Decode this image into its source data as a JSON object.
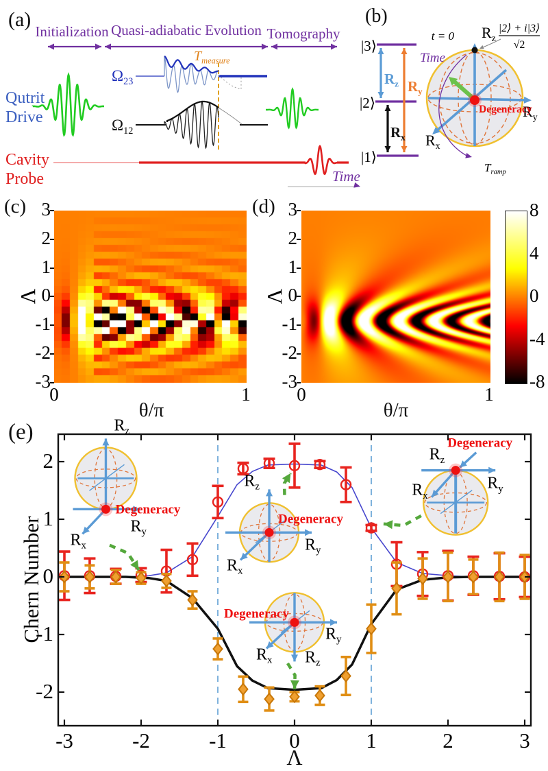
{
  "panel_a": {
    "label": "(a)",
    "phases": [
      "Initialization",
      "Quasi-adiabatic Evolution",
      "Tomography"
    ],
    "t_measure": {
      "base": "T",
      "sub": "measure"
    },
    "omega23": {
      "base": "Ω",
      "sub": "23"
    },
    "omega12": {
      "base": "Ω",
      "sub": "12"
    },
    "qutrit": "Qutrit",
    "drive": "Drive",
    "cavity": "Cavity",
    "probe": "Probe",
    "time_label": "Time",
    "colors": {
      "phase": "#7030A0",
      "qutrit_label": "#3B5FC0",
      "cavity_label": "#E02020",
      "green_pulse": "#22CC22",
      "omega23": "#2233BB",
      "omega12": "#111111",
      "t_measure": "#E0821A",
      "probe_line": "#E02020"
    }
  },
  "panel_b": {
    "label": "(b)",
    "levels": [
      "|3⟩",
      "|2⟩",
      "|1⟩"
    ],
    "rz": {
      "base": "R",
      "sub": "z",
      "color": "#5B9BD5"
    },
    "ry": {
      "base": "R",
      "sub": "y",
      "color": "#ED7D31"
    },
    "rx": {
      "base": "R",
      "sub": "x",
      "color": "#111111"
    },
    "t0": "t = 0",
    "state_numerator": "|2⟩ + i|3⟩",
    "state_denominator": "√2",
    "time_label": "Time",
    "t_ramp": {
      "base": "T",
      "sub": "ramp"
    },
    "degeneracy": "Degeneracy",
    "sphere_axis_rz": {
      "base": "R",
      "sub": "z"
    },
    "sphere_axis_ry": {
      "base": "R",
      "sub": "y"
    },
    "sphere_axis_rx": {
      "base": "R",
      "sub": "x"
    }
  },
  "panel_c": {
    "label": "(c)",
    "ylabel": "Λ",
    "yticks": [
      "3",
      "2",
      "1",
      "0",
      "-1",
      "-2",
      "-3"
    ],
    "xticks": [
      "0",
      "1"
    ],
    "xlabel": "θ/π"
  },
  "panel_d": {
    "label": "(d)",
    "ylabel": "Λ",
    "yticks": [
      "3",
      "2",
      "1",
      "0",
      "-1",
      "-2",
      "-3"
    ],
    "xticks": [
      "0",
      "1"
    ],
    "xlabel": "θ/π"
  },
  "colorbar": {
    "ticks": [
      "8",
      "4",
      "0",
      "-4",
      "-8"
    ]
  },
  "panel_e": {
    "label": "(e)",
    "ylabel": "Chern Number",
    "xlabel": "Λ",
    "xticks": [
      "-3",
      "-2",
      "-1",
      "0",
      "1",
      "2",
      "3"
    ],
    "yticks": [
      "2",
      "1",
      "0",
      "-1",
      "-2"
    ],
    "degeneracy": "Degeneracy"
  },
  "chart_data": [
    {
      "id": "c",
      "type": "heatmap",
      "xlabel": "θ/π",
      "ylabel": "Λ",
      "xlim": [
        0,
        1
      ],
      "ylim": [
        -3,
        3
      ],
      "clim": [
        -8,
        8
      ],
      "colormap": "hot",
      "style": "coarse checkerboard grid",
      "grid_cols": 24,
      "grid_rows": 25,
      "pattern": {
        "description": "oscillatory deflection band centered near Λ = -0.85, alternating-sign cells along θ with row-offset checkerboard, fading above Λ = 0 and below Λ = -2",
        "lambda0": -0.85,
        "k": 34,
        "theta0": 0.1,
        "bend": 0.65,
        "sigma_main": 0.5,
        "halo_amp": 0.22,
        "sigma_halo": 1.5,
        "ramp_theta": 0.13,
        "theta_decay": 0.3,
        "vmax": 8,
        "checker": true
      }
    },
    {
      "id": "d",
      "type": "heatmap",
      "xlabel": "θ/π",
      "ylabel": "Λ",
      "xlim": [
        0,
        1
      ],
      "ylim": [
        -3,
        3
      ],
      "clim": [
        -8,
        8
      ],
      "colormap": "hot",
      "style": "smooth chevron fringes opening toward larger θ, vertex near (θ=0.15, Λ=-0.85)",
      "grid_cols": 276,
      "grid_rows": 251,
      "pattern": {
        "description": "same oscillatory response as panel c but continuous",
        "lambda0": -0.85,
        "k": 34,
        "theta0": 0.1,
        "bend": 0.65,
        "sigma_main": 0.5,
        "halo_amp": 0.22,
        "sigma_halo": 1.5,
        "ramp_theta": 0.13,
        "theta_decay": 0.3,
        "vmax": 8,
        "checker": false
      }
    },
    {
      "id": "e",
      "type": "scatter",
      "xlabel": "Λ",
      "ylabel": "Chern Number",
      "xlim": [
        -3.08,
        3.08
      ],
      "ylim": [
        -2.58,
        2.47
      ],
      "xticks": [
        -3,
        -2,
        -1,
        0,
        1,
        2,
        3
      ],
      "yticks": [
        2,
        1,
        0,
        -1,
        -2
      ],
      "x": [
        -3,
        -2.67,
        -2.33,
        -2,
        -1.67,
        -1.33,
        -1,
        -0.67,
        -0.33,
        0,
        0.33,
        0.67,
        1,
        1.33,
        1.67,
        2,
        2.33,
        2.67,
        3
      ],
      "series": [
        {
          "name": "measured Chern number (upper band)",
          "marker": "circle",
          "color": "#E8241F",
          "y": [
            0.02,
            0.02,
            0.01,
            0.03,
            0.1,
            0.3,
            1.3,
            1.88,
            1.97,
            1.93,
            1.95,
            1.6,
            0.85,
            0.22,
            0.05,
            0.02,
            0.02,
            0.01,
            0.0
          ],
          "yerr": [
            0.42,
            0.3,
            0.13,
            0.12,
            0.37,
            0.28,
            0.28,
            0.1,
            0.08,
            0.38,
            0.06,
            0.3,
            0.05,
            0.38,
            0.38,
            0.43,
            0.33,
            0.4,
            0.35
          ]
        },
        {
          "name": "measured Chern number (lower band)",
          "marker": "diamond",
          "color": "#E08E14",
          "y": [
            0.0,
            0.0,
            0.0,
            -0.02,
            -0.07,
            -0.4,
            -1.25,
            -1.95,
            -2.12,
            -2.08,
            -2.06,
            -1.72,
            -0.9,
            -0.2,
            -0.03,
            0.0,
            0.0,
            0.0,
            0.0
          ],
          "yerr": [
            0.25,
            0.2,
            0.12,
            0.1,
            0.12,
            0.15,
            0.18,
            0.22,
            0.2,
            0.08,
            0.16,
            0.33,
            0.42,
            0.45,
            0.35,
            0.42,
            0.3,
            0.42,
            0.38
          ]
        }
      ],
      "lines": [
        {
          "name": "theory upper",
          "color": "#4747CE",
          "width": 1.6,
          "points": [
            [
              -3,
              0
            ],
            [
              -2.2,
              0
            ],
            [
              -1.9,
              0.02
            ],
            [
              -1.67,
              0.07
            ],
            [
              -1.33,
              0.35
            ],
            [
              -1,
              1.05
            ],
            [
              -0.75,
              1.6
            ],
            [
              -0.55,
              1.83
            ],
            [
              -0.35,
              1.94
            ],
            [
              0,
              1.96
            ],
            [
              0.35,
              1.94
            ],
            [
              0.55,
              1.82
            ],
            [
              0.75,
              1.55
            ],
            [
              1,
              0.85
            ],
            [
              1.33,
              0.25
            ],
            [
              1.67,
              0.06
            ],
            [
              2,
              0.02
            ],
            [
              2.3,
              0
            ],
            [
              3,
              0
            ]
          ]
        },
        {
          "name": "theory lower",
          "color": "#111111",
          "width": 3.5,
          "points": [
            [
              -3,
              0
            ],
            [
              -2.2,
              0
            ],
            [
              -1.9,
              -0.02
            ],
            [
              -1.67,
              -0.07
            ],
            [
              -1.33,
              -0.37
            ],
            [
              -1,
              -0.9
            ],
            [
              -0.75,
              -1.55
            ],
            [
              -0.55,
              -1.8
            ],
            [
              -0.35,
              -1.93
            ],
            [
              0,
              -1.96
            ],
            [
              0.35,
              -1.93
            ],
            [
              0.55,
              -1.79
            ],
            [
              0.75,
              -1.52
            ],
            [
              1,
              -0.82
            ],
            [
              1.33,
              -0.22
            ],
            [
              1.67,
              -0.05
            ],
            [
              2,
              -0.01
            ],
            [
              2.3,
              0
            ],
            [
              3,
              0
            ]
          ]
        }
      ],
      "vlines": {
        "x": [
          -1,
          1
        ],
        "color": "#7EB2DC",
        "style": "dashed"
      },
      "insets": [
        {
          "type": "south-pole",
          "center": {
            "lambda": -2.46,
            "chern": 1.71
          },
          "radius": 45,
          "degeneracy_at": "south pole",
          "deg": "Degeneracy"
        },
        {
          "type": "center-up",
          "center": {
            "lambda": -0.33,
            "chern": 0.77
          },
          "radius": 43,
          "degeneracy_at": "center, Rz up",
          "deg": "Degeneracy"
        },
        {
          "type": "center-down",
          "center": {
            "lambda": 0.0,
            "chern": -0.79
          },
          "radius": 43,
          "degeneracy_at": "center, Rz down",
          "deg": "Degeneracy"
        },
        {
          "type": "north-pole",
          "center": {
            "lambda": 2.1,
            "chern": 1.29
          },
          "radius": 47,
          "degeneracy_at": "north pole",
          "deg": "Degeneracy"
        }
      ],
      "pointer_arrows": [
        {
          "from": [
            -2.41,
            0.55
          ],
          "to": [
            -2.03,
            0.12
          ]
        },
        {
          "from": [
            -0.13,
            1.42
          ],
          "to": [
            -0.05,
            1.8
          ]
        },
        {
          "from": [
            -0.09,
            -1.5
          ],
          "to": [
            0.0,
            -1.95
          ]
        },
        {
          "from": [
            1.65,
            1.06
          ],
          "to": [
            1.16,
            0.92
          ]
        }
      ],
      "arrow_color": "#55A83C"
    }
  ]
}
